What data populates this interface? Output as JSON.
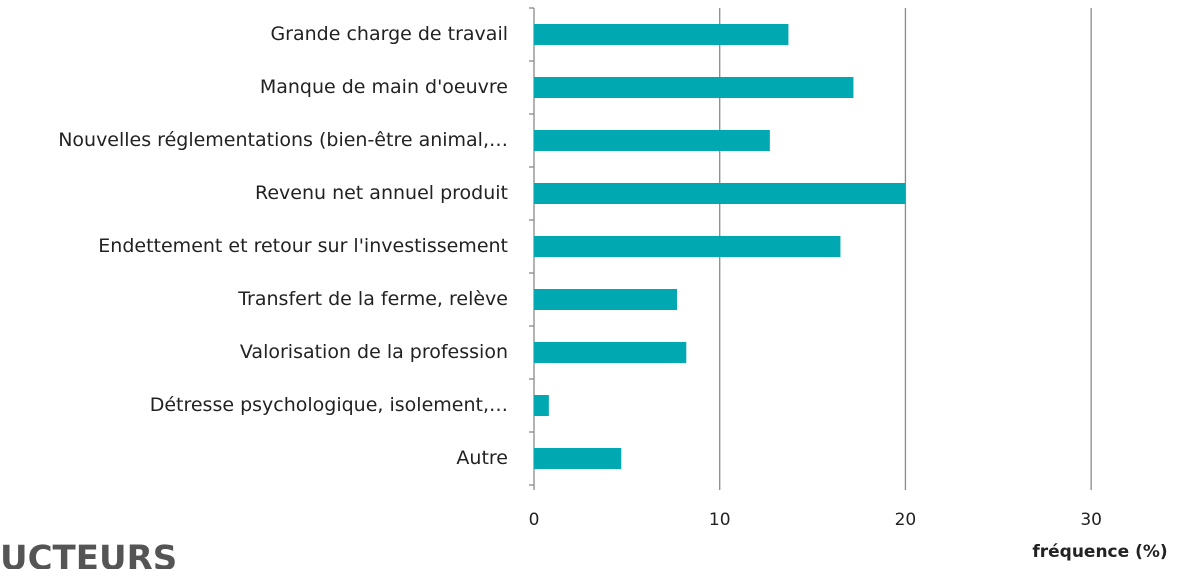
{
  "chart_data": {
    "type": "hbar",
    "categories": [
      "Grande charge de travail",
      "Manque de main d'oeuvre",
      "Nouvelles réglementations (bien-être animal,…",
      "Revenu net annuel produit",
      "Endettement et retour sur l'investissement",
      "Transfert de la ferme, relève",
      "Valorisation de la profession",
      "Détresse psychologique, isolement,…",
      "Autre"
    ],
    "values": [
      13.7,
      17.2,
      12.7,
      20.0,
      16.5,
      7.7,
      8.2,
      0.8,
      4.7
    ],
    "color": "#00a9b1",
    "xlabel": "fréquence (%)",
    "xlim": [
      0,
      35
    ],
    "xticks": [
      0,
      10,
      20,
      30
    ],
    "grid": true,
    "heading": "UCTEURS"
  }
}
